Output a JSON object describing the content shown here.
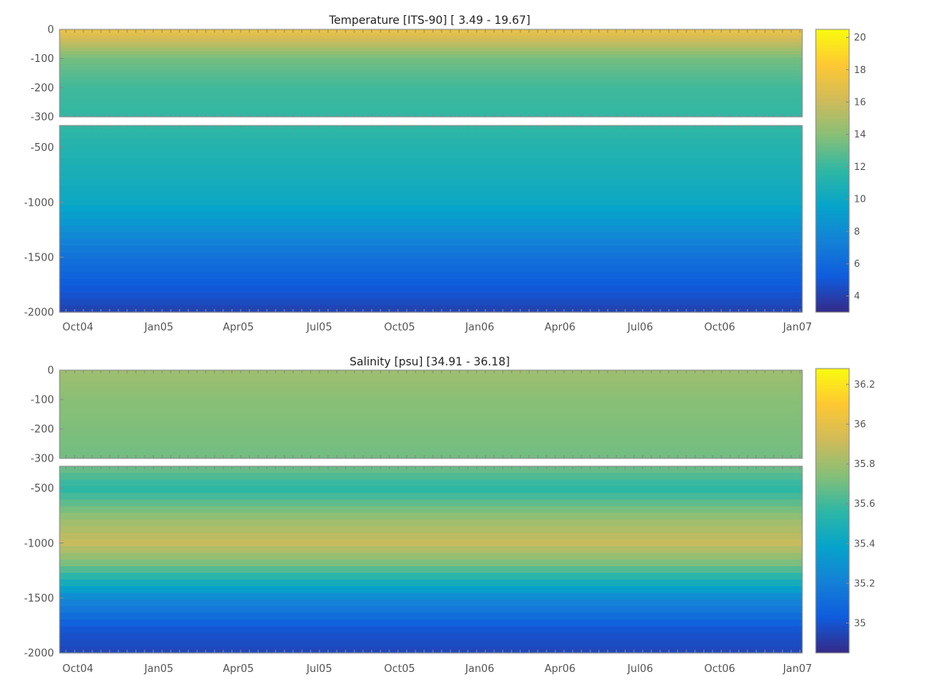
{
  "chart_data": [
    {
      "type": "heatmap",
      "title": "Temperature [ITS-90]   [ 3.49 - 19.67]",
      "x_ticks": [
        "Oct04",
        "Jan05",
        "Apr05",
        "Jul05",
        "Oct05",
        "Jan06",
        "Apr06",
        "Jul06",
        "Oct06",
        "Jan07"
      ],
      "upper_panel": {
        "ylim": [
          -300,
          0
        ],
        "y_ticks": [
          0,
          -100,
          -200,
          -300
        ]
      },
      "lower_panel": {
        "ylim": [
          -2000,
          -300
        ],
        "y_ticks": [
          -500,
          -1000,
          -1500,
          -2000
        ]
      },
      "colorbar": {
        "range": [
          3.0,
          20.5
        ],
        "ticks": [
          20,
          18,
          16,
          14,
          12,
          10,
          8,
          6,
          4
        ]
      },
      "profile_depth": [
        0,
        -100,
        -200,
        -300,
        -500,
        -1000,
        -1500,
        -2000
      ],
      "profile_value": [
        17.5,
        13.5,
        12.2,
        11.8,
        11.2,
        10.0,
        6.5,
        4.0
      ],
      "grid": false
    },
    {
      "type": "heatmap",
      "title": "Salinity [psu]   [34.91 - 36.18]",
      "x_ticks": [
        "Oct04",
        "Jan05",
        "Apr05",
        "Jul05",
        "Oct05",
        "Jan06",
        "Apr06",
        "Jul06",
        "Oct06",
        "Jan07"
      ],
      "upper_panel": {
        "ylim": [
          -300,
          0
        ],
        "y_ticks": [
          0,
          -100,
          -200,
          -300
        ]
      },
      "lower_panel": {
        "ylim": [
          -2000,
          -300
        ],
        "y_ticks": [
          -500,
          -1000,
          -1500,
          -2000
        ]
      },
      "colorbar": {
        "range": [
          34.85,
          36.28
        ],
        "ticks": [
          36.2,
          36,
          35.8,
          35.6,
          35.4,
          35.2,
          35
        ]
      },
      "profile_depth": [
        0,
        -100,
        -300,
        -500,
        -800,
        -1000,
        -1200,
        -1500,
        -1800,
        -2000
      ],
      "profile_value": [
        35.8,
        35.75,
        35.7,
        35.55,
        35.8,
        35.9,
        35.7,
        35.25,
        35.0,
        34.95
      ],
      "grid": false
    }
  ],
  "colors": {
    "parula": [
      "#352a87",
      "#0f5cdd",
      "#1481d6",
      "#06a4ca",
      "#2eb7a4",
      "#87bf77",
      "#d1bb59",
      "#fec832",
      "#f9fb0e"
    ],
    "axis": "#888888"
  }
}
